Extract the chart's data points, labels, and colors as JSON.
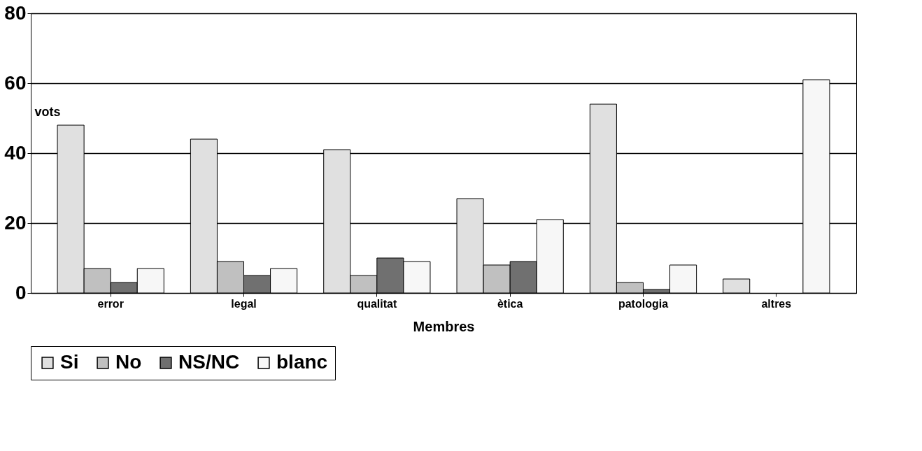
{
  "chart_data": {
    "type": "bar",
    "xlabel": "Membres",
    "ylabel": "vots",
    "categories": [
      "error",
      "legal",
      "qualitat",
      "ètica",
      "patologia",
      "altres"
    ],
    "series": [
      {
        "name": "Si",
        "color": "#e0e0e0",
        "values": [
          48,
          44,
          41,
          27,
          54,
          4
        ]
      },
      {
        "name": "No",
        "color": "#c0c0c0",
        "values": [
          7,
          9,
          5,
          8,
          3,
          0
        ]
      },
      {
        "name": "NS/NC",
        "color": "#707070",
        "values": [
          3,
          5,
          10,
          9,
          1,
          0
        ]
      },
      {
        "name": "blanc",
        "color": "#f7f7f7",
        "values": [
          7,
          7,
          9,
          21,
          8,
          61
        ]
      }
    ],
    "ylim": [
      0,
      80
    ],
    "yticks": [
      0,
      20,
      40,
      60,
      80
    ],
    "grid": "y",
    "legend": "bottom"
  }
}
